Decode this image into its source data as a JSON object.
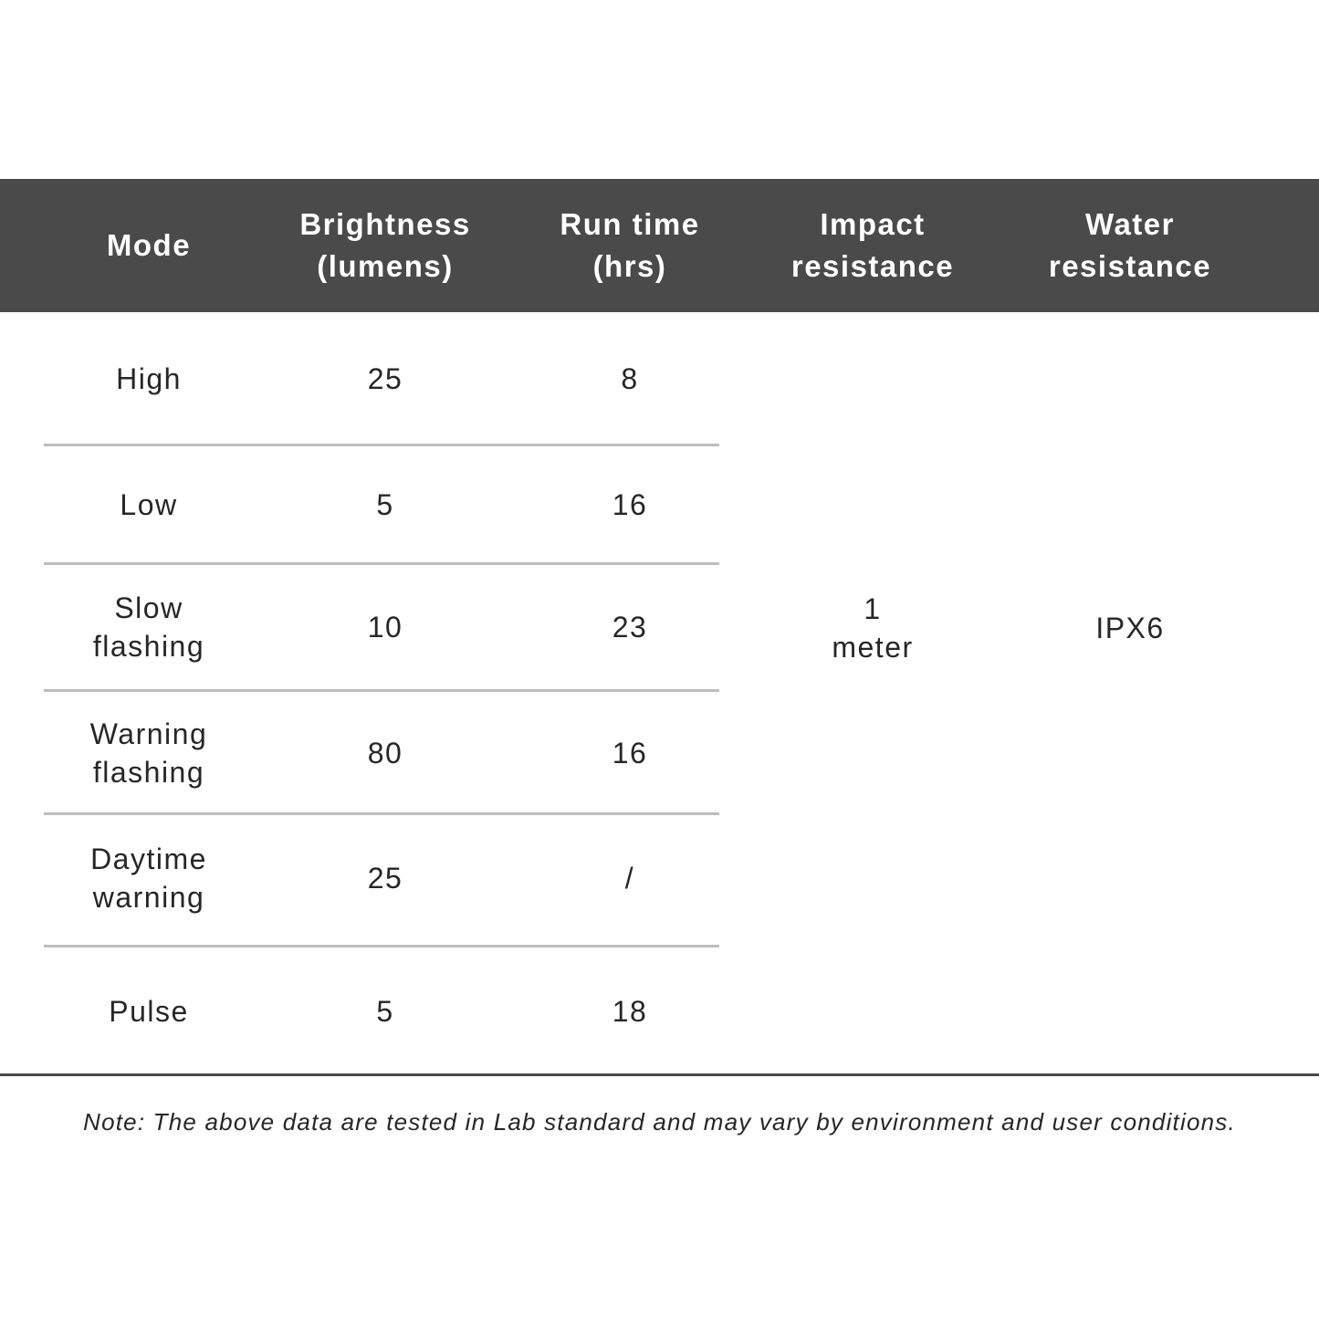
{
  "table": {
    "headers": [
      "Mode",
      "Brightness\n(lumens)",
      "Run time\n(hrs)",
      "Impact\nresistance",
      "Water\nresistance"
    ],
    "rows": [
      {
        "mode": "High",
        "brightness": "25",
        "runtime": "8"
      },
      {
        "mode": "Low",
        "brightness": "5",
        "runtime": "16"
      },
      {
        "mode": "Slow\nflashing",
        "brightness": "10",
        "runtime": "23"
      },
      {
        "mode": "Warning\nflashing",
        "brightness": "80",
        "runtime": "16"
      },
      {
        "mode": "Daytime\nwarning",
        "brightness": "25",
        "runtime": "/"
      },
      {
        "mode": "Pulse",
        "brightness": "5",
        "runtime": "18"
      }
    ],
    "impact_resistance": "1\nmeter",
    "water_resistance": "IPX6"
  },
  "note": "Note: The above data are tested in Lab standard and may vary by environment and user conditions.",
  "colors": {
    "header_bg": "#4a4a4a",
    "divider": "#bdbdbd"
  }
}
